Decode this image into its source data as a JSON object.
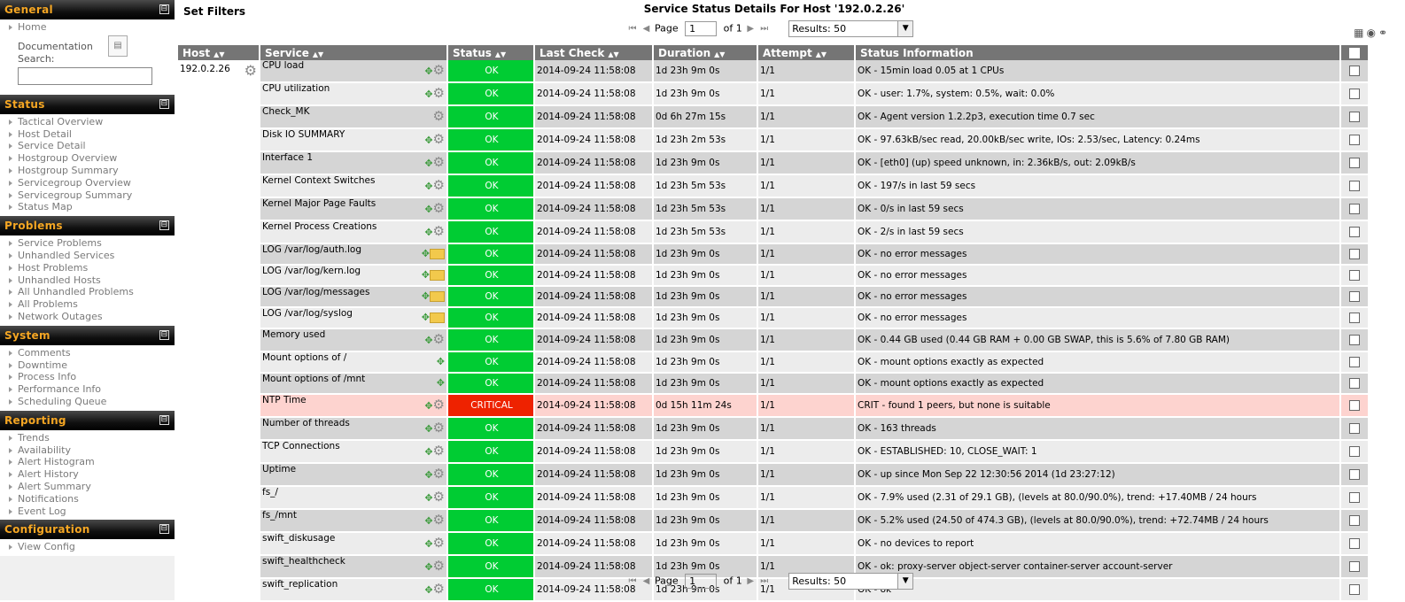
{
  "sidebar": {
    "sections": [
      {
        "title": "General",
        "toggle": "⊟",
        "items": [
          "Home"
        ]
      },
      {
        "title": "Status",
        "toggle": "⊟",
        "items": [
          "Tactical Overview",
          "Host Detail",
          "Service Detail",
          "Hostgroup Overview",
          "Hostgroup Summary",
          "Servicegroup Overview",
          "Servicegroup Summary",
          "Status Map"
        ]
      },
      {
        "title": "Problems",
        "toggle": "⊟",
        "items": [
          "Service Problems",
          "Unhandled Services",
          "Host Problems",
          "Unhandled Hosts",
          "All Unhandled Problems",
          "All Problems",
          "Network Outages"
        ]
      },
      {
        "title": "System",
        "toggle": "⊟",
        "items": [
          "Comments",
          "Downtime",
          "Process Info",
          "Performance Info",
          "Scheduling Queue"
        ]
      },
      {
        "title": "Reporting",
        "toggle": "⊟",
        "items": [
          "Trends",
          "Availability",
          "Alert Histogram",
          "Alert History",
          "Alert Summary",
          "Notifications",
          "Event Log"
        ]
      },
      {
        "title": "Configuration",
        "toggle": "⊟",
        "items": [
          "View Config"
        ]
      }
    ],
    "documentation_label": "Documentation",
    "search_label": "Search:"
  },
  "header": {
    "set_filters": "Set Filters",
    "title": "Service Status Details For Host '192.0.2.26'"
  },
  "pager": {
    "page_label": "Page",
    "page_value": "1",
    "of_label": "of 1",
    "results_value": "Results: 50"
  },
  "table": {
    "columns": [
      "Host",
      "Service",
      "Status",
      "Last Check",
      "Duration",
      "Attempt",
      "Status Information"
    ],
    "host": "192.0.2.26",
    "rows": [
      {
        "service": "CPU load",
        "icons": "graph-gear",
        "status": "OK",
        "last_check": "2014-09-24 11:58:08",
        "duration": "1d 23h 9m 0s",
        "attempt": "1/1",
        "info": "OK - 15min load 0.05 at 1 CPUs"
      },
      {
        "service": "CPU utilization",
        "icons": "graph-gear",
        "status": "OK",
        "last_check": "2014-09-24 11:58:08",
        "duration": "1d 23h 9m 0s",
        "attempt": "1/1",
        "info": "OK - user: 1.7%, system: 0.5%, wait: 0.0%"
      },
      {
        "service": "Check_MK",
        "icons": "gear",
        "status": "OK",
        "last_check": "2014-09-24 11:58:08",
        "duration": "0d 6h 27m 15s",
        "attempt": "1/1",
        "info": "OK - Agent version 1.2.2p3, execution time 0.7 sec"
      },
      {
        "service": "Disk IO SUMMARY",
        "icons": "graph-gear",
        "status": "OK",
        "last_check": "2014-09-24 11:58:08",
        "duration": "1d 23h 2m 53s",
        "attempt": "1/1",
        "info": "OK - 97.63kB/sec read, 20.00kB/sec write, IOs: 2.53/sec, Latency: 0.24ms"
      },
      {
        "service": "Interface 1",
        "icons": "graph-gear",
        "status": "OK",
        "last_check": "2014-09-24 11:58:08",
        "duration": "1d 23h 9m 0s",
        "attempt": "1/1",
        "info": "OK - [eth0] (up) speed unknown, in: 2.36kB/s, out: 2.09kB/s"
      },
      {
        "service": "Kernel Context Switches",
        "icons": "graph-gear",
        "status": "OK",
        "last_check": "2014-09-24 11:58:08",
        "duration": "1d 23h 5m 53s",
        "attempt": "1/1",
        "info": "OK - 197/s in last 59 secs"
      },
      {
        "service": "Kernel Major Page Faults",
        "icons": "graph-gear",
        "status": "OK",
        "last_check": "2014-09-24 11:58:08",
        "duration": "1d 23h 5m 53s",
        "attempt": "1/1",
        "info": "OK - 0/s in last 59 secs"
      },
      {
        "service": "Kernel Process Creations",
        "icons": "graph-gear",
        "status": "OK",
        "last_check": "2014-09-24 11:58:08",
        "duration": "1d 23h 5m 53s",
        "attempt": "1/1",
        "info": "OK - 2/s in last 59 secs"
      },
      {
        "service": "LOG /var/log/auth.log",
        "icons": "graph-folder",
        "status": "OK",
        "last_check": "2014-09-24 11:58:08",
        "duration": "1d 23h 9m 0s",
        "attempt": "1/1",
        "info": "OK - no error messages"
      },
      {
        "service": "LOG /var/log/kern.log",
        "icons": "graph-folder",
        "status": "OK",
        "last_check": "2014-09-24 11:58:08",
        "duration": "1d 23h 9m 0s",
        "attempt": "1/1",
        "info": "OK - no error messages"
      },
      {
        "service": "LOG /var/log/messages",
        "icons": "graph-folder",
        "status": "OK",
        "last_check": "2014-09-24 11:58:08",
        "duration": "1d 23h 9m 0s",
        "attempt": "1/1",
        "info": "OK - no error messages"
      },
      {
        "service": "LOG /var/log/syslog",
        "icons": "graph-folder",
        "status": "OK",
        "last_check": "2014-09-24 11:58:08",
        "duration": "1d 23h 9m 0s",
        "attempt": "1/1",
        "info": "OK - no error messages"
      },
      {
        "service": "Memory used",
        "icons": "graph-gear",
        "status": "OK",
        "last_check": "2014-09-24 11:58:08",
        "duration": "1d 23h 9m 0s",
        "attempt": "1/1",
        "info": "OK - 0.44 GB used (0.44 GB RAM + 0.00 GB SWAP, this is 5.6% of 7.80 GB RAM)"
      },
      {
        "service": "Mount options of /",
        "icons": "graph",
        "status": "OK",
        "last_check": "2014-09-24 11:58:08",
        "duration": "1d 23h 9m 0s",
        "attempt": "1/1",
        "info": "OK - mount options exactly as expected"
      },
      {
        "service": "Mount options of /mnt",
        "icons": "graph",
        "status": "OK",
        "last_check": "2014-09-24 11:58:08",
        "duration": "1d 23h 9m 0s",
        "attempt": "1/1",
        "info": "OK - mount options exactly as expected"
      },
      {
        "service": "NTP Time",
        "icons": "graph-gear",
        "status": "CRITICAL",
        "last_check": "2014-09-24 11:58:08",
        "duration": "0d 15h 11m 24s",
        "attempt": "1/1",
        "info": "CRIT - found 1 peers, but none is suitable"
      },
      {
        "service": "Number of threads",
        "icons": "graph-gear",
        "status": "OK",
        "last_check": "2014-09-24 11:58:08",
        "duration": "1d 23h 9m 0s",
        "attempt": "1/1",
        "info": "OK - 163 threads"
      },
      {
        "service": "TCP Connections",
        "icons": "graph-gear",
        "status": "OK",
        "last_check": "2014-09-24 11:58:08",
        "duration": "1d 23h 9m 0s",
        "attempt": "1/1",
        "info": "OK - ESTABLISHED: 10, CLOSE_WAIT: 1"
      },
      {
        "service": "Uptime",
        "icons": "graph-gear",
        "status": "OK",
        "last_check": "2014-09-24 11:58:08",
        "duration": "1d 23h 9m 0s",
        "attempt": "1/1",
        "info": "OK - up since Mon Sep 22 12:30:56 2014 (1d 23:27:12)"
      },
      {
        "service": "fs_/",
        "icons": "graph-gear",
        "status": "OK",
        "last_check": "2014-09-24 11:58:08",
        "duration": "1d 23h 9m 0s",
        "attempt": "1/1",
        "info": "OK - 7.9% used (2.31 of 29.1 GB), (levels at 80.0/90.0%), trend: +17.40MB / 24 hours"
      },
      {
        "service": "fs_/mnt",
        "icons": "graph-gear",
        "status": "OK",
        "last_check": "2014-09-24 11:58:08",
        "duration": "1d 23h 9m 0s",
        "attempt": "1/1",
        "info": "OK - 5.2% used (24.50 of 474.3 GB), (levels at 80.0/90.0%), trend: +72.74MB / 24 hours"
      },
      {
        "service": "swift_diskusage",
        "icons": "graph-gear",
        "status": "OK",
        "last_check": "2014-09-24 11:58:08",
        "duration": "1d 23h 9m 0s",
        "attempt": "1/1",
        "info": "OK - no devices to report"
      },
      {
        "service": "swift_healthcheck",
        "icons": "graph-gear",
        "status": "OK",
        "last_check": "2014-09-24 11:58:08",
        "duration": "1d 23h 9m 0s",
        "attempt": "1/1",
        "info": "OK - ok: proxy-server object-server container-server account-server"
      },
      {
        "service": "swift_replication",
        "icons": "graph-gear",
        "status": "OK",
        "last_check": "2014-09-24 11:58:08",
        "duration": "1d 23h 9m 0s",
        "attempt": "1/1",
        "info": "OK - ok"
      }
    ]
  },
  "colors": {
    "ok": "#00cc33",
    "critical": "#ee2200",
    "crit_row": "#fdd3cf",
    "header": "#757575"
  }
}
